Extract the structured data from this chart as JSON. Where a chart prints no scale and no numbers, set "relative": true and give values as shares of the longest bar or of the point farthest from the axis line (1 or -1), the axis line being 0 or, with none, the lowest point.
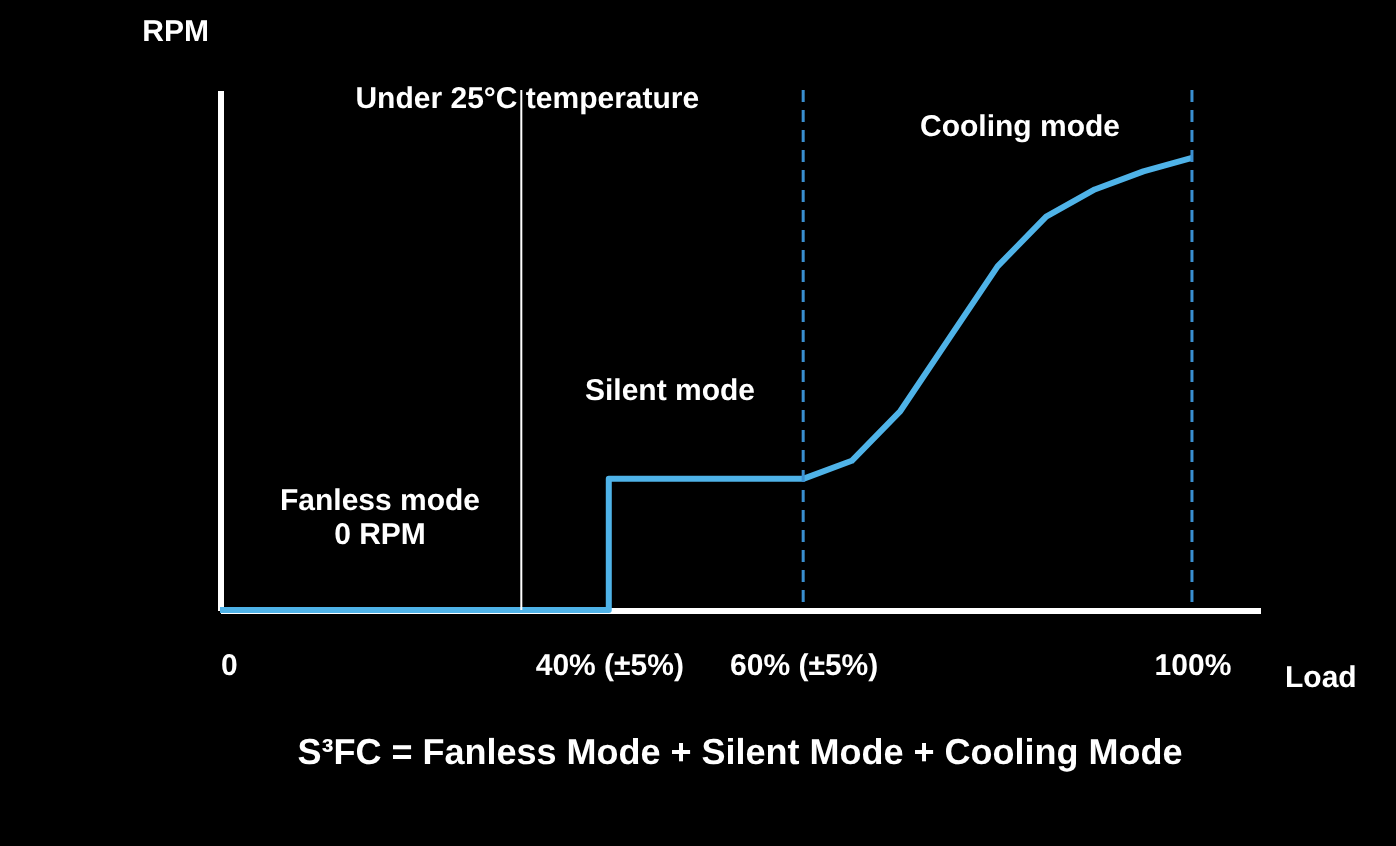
{
  "chart_data": {
    "type": "line",
    "xlabel": "Load",
    "ylabel": "RPM",
    "title": "S³FC = Fanless Mode + Silent Mode + Cooling Mode",
    "relative": true,
    "xlim": [
      0,
      107
    ],
    "xticks": [
      0,
      {
        "value": 40,
        "label": "40% (±5%)"
      },
      {
        "value": 60,
        "label": "60% (±5%)"
      },
      {
        "value": 100,
        "label": "100%"
      }
    ],
    "series": [
      {
        "color": "#4fb3e8",
        "x": [
          0,
          40,
          40,
          60,
          65,
          70,
          75,
          80,
          85,
          90,
          95,
          100
        ],
        "values": [
          0,
          0,
          0.29,
          0.29,
          0.33,
          0.44,
          0.6,
          0.76,
          0.87,
          0.93,
          0.97,
          1
        ]
      }
    ],
    "ref_lines": [
      {
        "axis": "x",
        "value": 31,
        "label": "Under 25°C temperature",
        "color": "#ffffff",
        "line_style": "solid"
      },
      {
        "axis": "x",
        "value": 60,
        "color": "#3a8fd0",
        "line_style": "dashed"
      },
      {
        "axis": "x",
        "value": 100,
        "color": "#3a8fd0",
        "line_style": "dashed"
      }
    ],
    "annotations": [
      "Fanless mode\n0 RPM",
      "Silent mode",
      "Cooling mode"
    ],
    "marker": "none",
    "line_style": "solid"
  }
}
